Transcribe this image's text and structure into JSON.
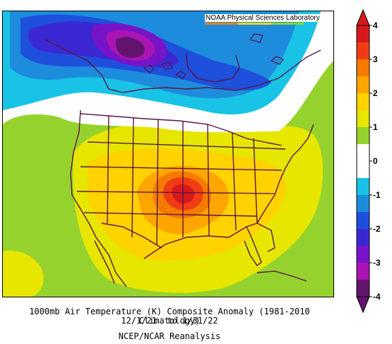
{
  "credit": "NOAA Physical Sciences Laboratory",
  "credit_bar_colors": [
    "#ff8000",
    "#ffd700",
    "#90d820"
  ],
  "caption": {
    "line1": "1000mb Air Temperature (K) Composite Anomaly (1981-2010 Climatology)",
    "line2": "12/1/21  to 1/31/22",
    "line3": "NCEP/NCAR Reanalysis"
  },
  "colorbar": {
    "ticks": [
      "4",
      "3",
      "2",
      "1",
      "0",
      "-1",
      "-2",
      "-3",
      "-4"
    ],
    "colors": [
      {
        "from": 3.5,
        "to": 4,
        "color": "#d7191c"
      },
      {
        "from": 3,
        "to": 3.5,
        "color": "#f03c14"
      },
      {
        "from": 2.5,
        "to": 3,
        "color": "#f57a00"
      },
      {
        "from": 2,
        "to": 2.5,
        "color": "#ffa500"
      },
      {
        "from": 1.5,
        "to": 2,
        "color": "#ffd200"
      },
      {
        "from": 1,
        "to": 1.5,
        "color": "#e6e600"
      },
      {
        "from": 0.5,
        "to": 1,
        "color": "#96d22d"
      },
      {
        "from": -0.5,
        "to": 0.5,
        "color": "#ffffff"
      },
      {
        "from": -1,
        "to": -0.5,
        "color": "#19c3e6"
      },
      {
        "from": -1.5,
        "to": -1,
        "color": "#1e8cdc"
      },
      {
        "from": -2,
        "to": -1.5,
        "color": "#1e50dc"
      },
      {
        "from": -2.5,
        "to": -2,
        "color": "#3c28d2"
      },
      {
        "from": -3,
        "to": -2.5,
        "color": "#7814c8"
      },
      {
        "from": -3.5,
        "to": -3,
        "color": "#aa14b4"
      },
      {
        "from": -4,
        "to": -3.5,
        "color": "#64146e"
      }
    ],
    "cap_colors": {
      "top": "#d7191c",
      "bottom": "#64146e"
    }
  },
  "map": {
    "colors": {
      "land_outline": "#5a1446",
      "background": "#96d22d"
    }
  }
}
